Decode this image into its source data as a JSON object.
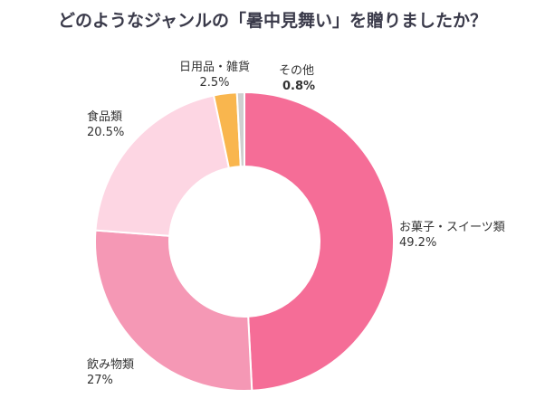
{
  "chart_data": {
    "type": "pie",
    "donut": true,
    "title": "どのようなジャンルの「暑中見舞い」を贈りましたか？",
    "slices": [
      {
        "label": "お菓子・スイーツ類",
        "value": 49.2,
        "value_label": "49.2%",
        "color": "#f56d97"
      },
      {
        "label": "飲み物類",
        "value": 27,
        "value_label": "27%",
        "color": "#f598b5"
      },
      {
        "label": "食品類",
        "value": 20.5,
        "value_label": "20.5%",
        "color": "#fdd6e3"
      },
      {
        "label": "日用品・雑貨",
        "value": 2.5,
        "value_label": "2.5%",
        "color": "#f9b64e"
      },
      {
        "label": "その他",
        "value": 0.8,
        "value_label": "0.8%",
        "color": "#cfcfcf"
      }
    ],
    "start": "top",
    "direction": "clockwise"
  }
}
